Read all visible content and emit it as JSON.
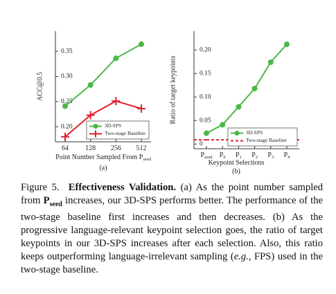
{
  "chart_data": [
    {
      "type": "line",
      "categories": [
        "64",
        "128",
        "256",
        "512"
      ],
      "y_label": "ACC@0.5",
      "x_label": "Point Number Sampled From P",
      "x_label_sub": "seed",
      "sub_caption": "(a)",
      "ylim": [
        0.17,
        0.39
      ],
      "yticks": [
        {
          "value": 0.2,
          "label": "0.20"
        },
        0.25,
        {
          "value": 0.3,
          "label": "0.30"
        },
        0.35
      ],
      "legend": "lower right",
      "series": [
        {
          "name": "3D-SPS",
          "color": "#4cb848",
          "marker": "circle",
          "line_style": "solid",
          "values": [
            0.241,
            0.283,
            0.336,
            0.364
          ]
        },
        {
          "name": "Two-stage Baseline",
          "color": "#e0202a",
          "marker": "plus",
          "line_style": "solid",
          "values": [
            0.18,
            0.223,
            0.251,
            0.236
          ]
        }
      ]
    },
    {
      "type": "line",
      "categories": [
        "P",
        "P",
        "P",
        "P",
        "P",
        "P"
      ],
      "category_subscripts": [
        "seed",
        "0",
        "1",
        "2",
        "3",
        "4"
      ],
      "y_label": "Ratio of target keypoints",
      "x_label": "Keypoint Selections",
      "sub_caption": "(b)",
      "ylim": [
        -0.01,
        0.24
      ],
      "yticks": [
        0,
        0.05,
        {
          "value": 0.1,
          "label": "0.10"
        },
        0.15,
        {
          "value": 0.2,
          "label": "0.20"
        }
      ],
      "legend": "lower right",
      "series": [
        {
          "name": "3D-SPS",
          "color": "#4cb848",
          "marker": "circle",
          "line_style": "solid",
          "values": [
            0.023,
            0.041,
            0.079,
            0.118,
            0.174,
            0.212
          ]
        },
        {
          "name": "Two-stage Baseline",
          "color": "#e0202a",
          "marker": "none",
          "line_style": "dashed",
          "values": [
            0.009,
            0.009,
            0.009,
            0.009,
            0.009,
            0.009
          ]
        }
      ]
    }
  ],
  "caption": {
    "label": "Figure 5.",
    "heading": "Effectiveness Validation.",
    "part1": "(a) As the point number sampled from ",
    "bold_symbol": "P",
    "bold_symbol_sub": "seed",
    "part2": " increases, our 3D-SPS performs better. The performance of the two-stage baseline first increases and then decreases. (b) As the progressive language-relevant keypoint selection goes, the ratio of target keypoints in our 3D-SPS increases after each selection. Also, this ratio keeps outperforming language-irrelevant sampling (",
    "italic": "e.g.",
    "part3": ", FPS) used in the two-stage baseline."
  }
}
